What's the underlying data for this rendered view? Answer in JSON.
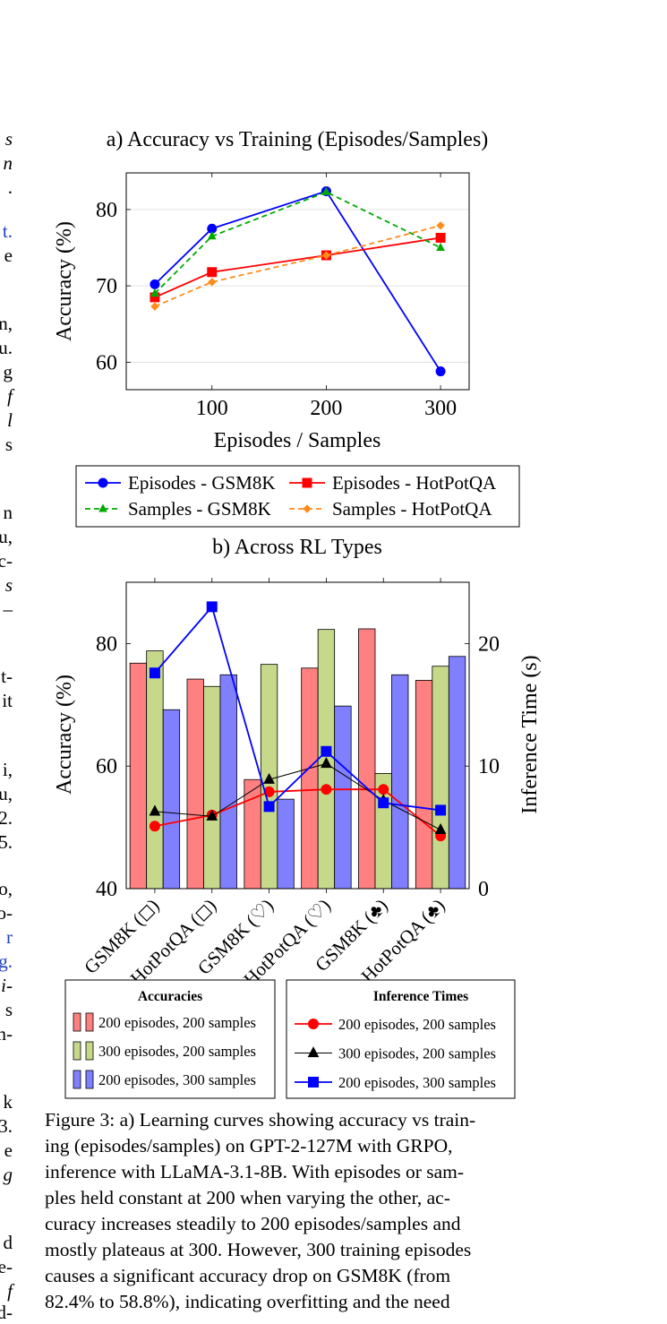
{
  "margin_fragments": [
    {
      "text": "s",
      "italic": true,
      "color": "#000000"
    },
    {
      "text": "n",
      "italic": true,
      "color": "#000000"
    },
    {
      "text": ".",
      "italic": false,
      "color": "#000000"
    },
    {
      "text": "t.",
      "italic": false,
      "color": "#1f3fbf"
    },
    {
      "text": "e",
      "italic": false,
      "color": "#000000"
    },
    {
      "text": "n,",
      "italic": false,
      "color": "#000000"
    },
    {
      "text": "u.",
      "italic": false,
      "color": "#000000"
    },
    {
      "text": "g",
      "italic": false,
      "color": "#000000"
    },
    {
      "text": "f",
      "italic": true,
      "color": "#000000"
    },
    {
      "text": "l",
      "italic": true,
      "color": "#000000"
    },
    {
      "text": "s",
      "italic": false,
      "color": "#000000"
    },
    {
      "text": "n",
      "italic": false,
      "color": "#000000"
    },
    {
      "text": "u,",
      "italic": false,
      "color": "#000000"
    },
    {
      "text": "c-",
      "italic": false,
      "color": "#000000"
    },
    {
      "text": "s",
      "italic": true,
      "color": "#000000"
    },
    {
      "text": "–",
      "italic": false,
      "color": "#000000"
    },
    {
      "text": "t-",
      "italic": false,
      "color": "#000000"
    },
    {
      "text": "it",
      "italic": false,
      "color": "#000000"
    },
    {
      "text": "i,",
      "italic": false,
      "color": "#000000"
    },
    {
      "text": "u,",
      "italic": false,
      "color": "#000000"
    },
    {
      "text": "2.",
      "italic": false,
      "color": "#000000"
    },
    {
      "text": "5.",
      "italic": false,
      "color": "#000000"
    },
    {
      "text": "o,",
      "italic": false,
      "color": "#000000"
    },
    {
      "text": "o-",
      "italic": false,
      "color": "#000000"
    },
    {
      "text": "r",
      "italic": false,
      "color": "#1f3fbf"
    },
    {
      "text": "g.",
      "italic": false,
      "color": "#1f3fbf"
    },
    {
      "text": "i-",
      "italic": true,
      "color": "#000000"
    },
    {
      "text": "s",
      "italic": false,
      "color": "#000000"
    },
    {
      "text": "n-",
      "italic": false,
      "color": "#000000"
    },
    {
      "text": "k",
      "italic": false,
      "color": "#000000"
    },
    {
      "text": "3.",
      "italic": false,
      "color": "#000000"
    },
    {
      "text": "e",
      "italic": false,
      "color": "#000000"
    },
    {
      "text": "g",
      "italic": true,
      "color": "#000000"
    },
    {
      "text": "d",
      "italic": false,
      "color": "#000000"
    },
    {
      "text": "e-",
      "italic": false,
      "color": "#000000"
    },
    {
      "text": "f",
      "italic": true,
      "color": "#000000"
    },
    {
      "text": "d-",
      "italic": false,
      "color": "#000000"
    }
  ],
  "chart_data": [
    {
      "type": "line",
      "title": "a) Accuracy vs Training (Episodes/Samples)",
      "xlabel": "Episodes / Samples",
      "ylabel": "Accuracy (%)",
      "x": [
        50,
        100,
        200,
        300
      ],
      "x_ticks": [
        100,
        200,
        300
      ],
      "xlim": [
        25,
        325
      ],
      "ylim": [
        56.4,
        84.8
      ],
      "y_ticks": [
        60,
        70,
        80
      ],
      "grid": "horizontal",
      "series": [
        {
          "name": "Episodes - GSM8K",
          "values": [
            70.2,
            77.5,
            82.4,
            58.8
          ],
          "color": "#0000ff",
          "marker": "circle",
          "dashed": false
        },
        {
          "name": "Episodes - HotPotQA",
          "values": [
            68.5,
            71.8,
            74.0,
            76.3
          ],
          "color": "#ff0000",
          "marker": "square",
          "dashed": false
        },
        {
          "name": "Samples - GSM8K",
          "values": [
            69.0,
            76.5,
            82.3,
            75.0
          ],
          "color": "#00aa00",
          "marker": "triangle",
          "dashed": true
        },
        {
          "name": "Samples - HotPotQA",
          "values": [
            67.3,
            70.5,
            74.0,
            77.9
          ],
          "color": "#ff8c1a",
          "marker": "diamond",
          "dashed": true
        }
      ],
      "legend": "bottom, outside"
    },
    {
      "type": "bar",
      "title": "b) Across RL Types",
      "ylabel": "Accuracy (%)",
      "y2label": "Inference Time (s)",
      "categories": [
        "GSM8K (◻)",
        "HotPotQA (◻)",
        "GSM8K (♡)",
        "HotPotQA (♡)",
        "GSM8K (♣)",
        "HotPotQA (♣)"
      ],
      "ylim": [
        40,
        90
      ],
      "y_ticks": [
        40,
        60,
        80
      ],
      "y2lim": [
        0,
        25
      ],
      "y2_ticks": [
        0,
        10,
        20
      ],
      "bar_series": [
        {
          "name": "200 episodes, 200 samples",
          "values": [
            76.8,
            74.2,
            57.8,
            76.0,
            82.4,
            74.0
          ],
          "color": "#ff8080"
        },
        {
          "name": "300 episodes, 200 samples",
          "values": [
            78.8,
            73.0,
            76.6,
            82.3,
            58.8,
            76.3
          ],
          "color": "#c6d98a"
        },
        {
          "name": "200 episodes, 300 samples",
          "values": [
            69.2,
            74.9,
            54.6,
            69.8,
            74.9,
            77.9
          ],
          "color": "#8080ff"
        }
      ],
      "line_series": [
        {
          "name": "200 episodes, 200 samples",
          "values": [
            5.1,
            6.0,
            7.9,
            8.1,
            8.1,
            4.3
          ],
          "color": "#ff0000",
          "marker": "circle"
        },
        {
          "name": "300 episodes, 200 samples",
          "values": [
            6.3,
            5.9,
            8.9,
            10.2,
            7.2,
            4.8
          ],
          "color": "#000000",
          "marker": "triangle"
        },
        {
          "name": "200 episodes, 300 samples",
          "values": [
            17.6,
            23.0,
            6.7,
            11.2,
            7.0,
            6.4
          ],
          "color": "#0000ff",
          "marker": "square"
        }
      ],
      "legend_titles": {
        "bars": "Accuracies",
        "lines": "Inference Times"
      },
      "legend": "bottom, two boxes"
    }
  ],
  "caption": "Figure 3: a) Learning curves showing accuracy vs training (episodes/samples) on GPT-2-127M with GRPO, inference with LLaMA-3.1-8B. With episodes or samples held constant at 200 when varying the other, accuracy increases steadily to 200 episodes/samples and mostly plateaus at 300. However, 300 training episodes causes a significant accuracy drop on GSM8K (from 82.4% to 58.8%), indicating overfitting and the need",
  "caption_lines": [
    "Figure 3: a) Learning curves showing accuracy vs train-",
    "ing (episodes/samples) on GPT-2-127M with GRPO,",
    "inference with LLaMA-3.1-8B. With episodes or sam-",
    "ples held constant at 200 when varying the other, ac-",
    "curacy increases steadily to 200 episodes/samples and",
    "mostly plateaus at 300. However, 300 training episodes",
    "causes a significant accuracy drop on GSM8K (from",
    "82.4% to 58.8%), indicating overfitting and the need"
  ]
}
